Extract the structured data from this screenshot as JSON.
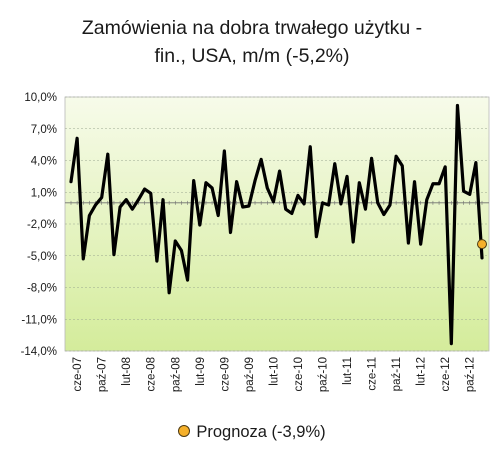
{
  "chart_data": {
    "type": "line",
    "title_lines": [
      "Zamówienia na dobra trwałego użytku -",
      "fin., USA, m/m (-5,2%)"
    ],
    "xlabel": "",
    "ylabel": "",
    "ylim": [
      -14.0,
      10.0
    ],
    "y_ticks": [
      "10,0%",
      "7,0%",
      "4,0%",
      "1,0%",
      "-2,0%",
      "-5,0%",
      "-8,0%",
      "-11,0%",
      "-14,0%"
    ],
    "y_tick_values": [
      10,
      7,
      4,
      1,
      -2,
      -5,
      -8,
      -11,
      -14
    ],
    "x_tick_labels": [
      "cze-07",
      "paź-07",
      "lut-08",
      "cze-08",
      "paź-08",
      "lut-09",
      "cze-09",
      "paź-09",
      "lut-10",
      "cze-10",
      "paź-10",
      "lut-11",
      "cze-11",
      "paź-11",
      "lut-12",
      "cze-12",
      "paź-12"
    ],
    "x_tick_start_index": 1,
    "x_tick_step": 4,
    "grid": true,
    "legend_position": "bottom",
    "series": [
      {
        "values": [
          2.0,
          6.1,
          -5.3,
          -1.2,
          -0.2,
          0.5,
          4.6,
          -4.9,
          -0.4,
          0.3,
          -0.6,
          0.3,
          1.3,
          0.9,
          -5.5,
          0.3,
          -8.5,
          -3.6,
          -4.5,
          -7.3,
          2.1,
          -2.1,
          1.9,
          1.4,
          -1.2,
          4.9,
          -2.8,
          2.0,
          -0.4,
          -0.3,
          2.1,
          4.1,
          1.4,
          0.1,
          3.0,
          -0.6,
          -1.0,
          0.7,
          -0.1,
          5.3,
          -3.2,
          0.0,
          -0.2,
          3.7,
          -0.1,
          2.5,
          -3.7,
          1.9,
          -0.6,
          4.2,
          0.0,
          -1.1,
          -0.2,
          4.4,
          3.5,
          -3.8,
          2.0,
          -3.9,
          0.3,
          1.8,
          1.8,
          3.4,
          -13.3,
          9.2,
          1.1,
          0.8,
          3.8,
          -5.2
        ]
      }
    ],
    "forecast": {
      "label": "Prognoza (-3,9%)",
      "value": -3.9,
      "color": "#f5b02a"
    },
    "colors": {
      "line": "#000000",
      "plot_top": "#f7fbea",
      "plot_bottom": "#d4ec9b",
      "grid": "#9aa790"
    }
  }
}
